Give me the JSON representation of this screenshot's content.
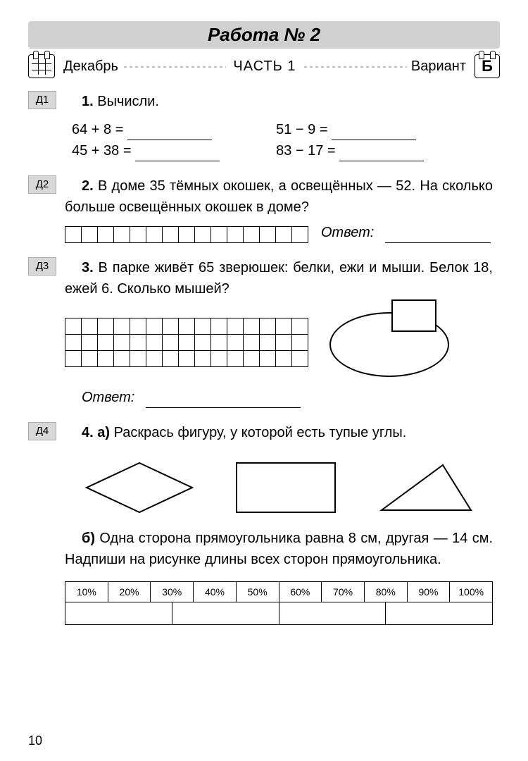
{
  "header": {
    "title": "Работа № 2",
    "month": "Декабрь",
    "part": "ЧАСТЬ 1",
    "variant_label": "Вариант",
    "variant_letter": "Б"
  },
  "tags": {
    "d1": "Д1",
    "d2": "Д2",
    "d3": "Д3",
    "d4": "Д4"
  },
  "q1": {
    "num": "1.",
    "title": "Вычисли.",
    "eqs": [
      "64 + 8 =",
      "51 − 9 =",
      "45 + 38 =",
      "83 − 17 ="
    ]
  },
  "q2": {
    "num": "2.",
    "text": "В доме 35 тёмных окошек, а освещённых — 52. На сколько больше освещённых окошек в доме?",
    "answer_label": "Ответ:",
    "cells_count": 15
  },
  "q3": {
    "num": "3.",
    "text": "В парке живёт 65 зверюшек: белки, ежи и мыши. Белок 18, ежей 6. Сколько мышей?",
    "answer_label": "Ответ:",
    "grid_rows": 3,
    "grid_cols": 15
  },
  "q4": {
    "num": "4.",
    "a_label": "а)",
    "a_text": "Раскрась фигуру, у которой есть тупые углы.",
    "b_label": "б)",
    "b_text": "Одна сторона прямоугольника равна 8 см, другая — 14 см. Надпиши на рисунке длины всех сторон прямоугольника."
  },
  "pct_table": [
    "10%",
    "20%",
    "30%",
    "40%",
    "50%",
    "60%",
    "70%",
    "80%",
    "90%",
    "100%"
  ],
  "blank_row_cells": 4,
  "page_number": "10",
  "shapes": {
    "rhombus": {
      "stroke": "#000000",
      "stroke_width": 2
    },
    "rectangle": {
      "stroke": "#000000",
      "stroke_width": 2,
      "width": 140,
      "height": 70
    },
    "triangle": {
      "stroke": "#000000",
      "stroke_width": 2
    }
  },
  "colors": {
    "band_bg": "#d0d0d0",
    "tag_bg": "#d8d8d8",
    "text": "#000000",
    "page_bg": "#ffffff"
  }
}
